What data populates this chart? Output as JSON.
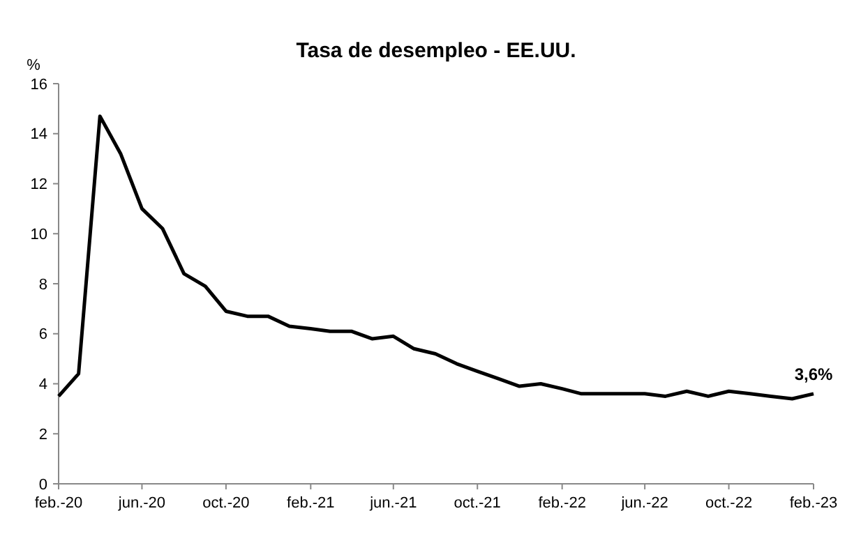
{
  "chart_data": {
    "type": "line",
    "title": "Tasa de desempleo - EE.UU.",
    "ylabel": "%",
    "x": [
      "2020-02",
      "2020-03",
      "2020-04",
      "2020-05",
      "2020-06",
      "2020-07",
      "2020-08",
      "2020-09",
      "2020-10",
      "2020-11",
      "2020-12",
      "2021-01",
      "2021-02",
      "2021-03",
      "2021-04",
      "2021-05",
      "2021-06",
      "2021-07",
      "2021-08",
      "2021-09",
      "2021-10",
      "2021-11",
      "2021-12",
      "2022-01",
      "2022-02",
      "2022-03",
      "2022-04",
      "2022-05",
      "2022-06",
      "2022-07",
      "2022-08",
      "2022-09",
      "2022-10",
      "2022-11",
      "2022-12",
      "2023-01",
      "2023-02"
    ],
    "series": [
      {
        "color": "#000000",
        "values": [
          3.5,
          4.4,
          14.7,
          13.2,
          11.0,
          10.2,
          8.4,
          7.9,
          6.9,
          6.7,
          6.7,
          6.3,
          6.2,
          6.1,
          6.1,
          5.8,
          5.9,
          5.4,
          5.2,
          4.8,
          4.5,
          4.2,
          3.9,
          4.0,
          3.8,
          3.6,
          3.6,
          3.6,
          3.6,
          3.5,
          3.7,
          3.5,
          3.7,
          3.6,
          3.5,
          3.4,
          3.6
        ]
      }
    ],
    "xlim": [
      "2020-02",
      "2023-02"
    ],
    "xticks": [
      {
        "value": "2020-02",
        "label": "feb.-20"
      },
      {
        "value": "2020-06",
        "label": "jun.-20"
      },
      {
        "value": "2020-10",
        "label": "oct.-20"
      },
      {
        "value": "2021-02",
        "label": "feb.-21"
      },
      {
        "value": "2021-06",
        "label": "jun.-21"
      },
      {
        "value": "2021-10",
        "label": "oct.-21"
      },
      {
        "value": "2022-02",
        "label": "feb.-22"
      },
      {
        "value": "2022-06",
        "label": "jun.-22"
      },
      {
        "value": "2022-10",
        "label": "oct.-22"
      },
      {
        "value": "2023-02",
        "label": "feb.-23"
      }
    ],
    "ylim": [
      0,
      16
    ],
    "yticks": [
      0,
      2,
      4,
      6,
      8,
      10,
      12,
      14,
      16
    ],
    "grid": false,
    "marker": "none",
    "line_style": "solid",
    "annotations": [
      {
        "text": "3,6%",
        "x": "2023-02",
        "y": 3.6
      }
    ]
  }
}
